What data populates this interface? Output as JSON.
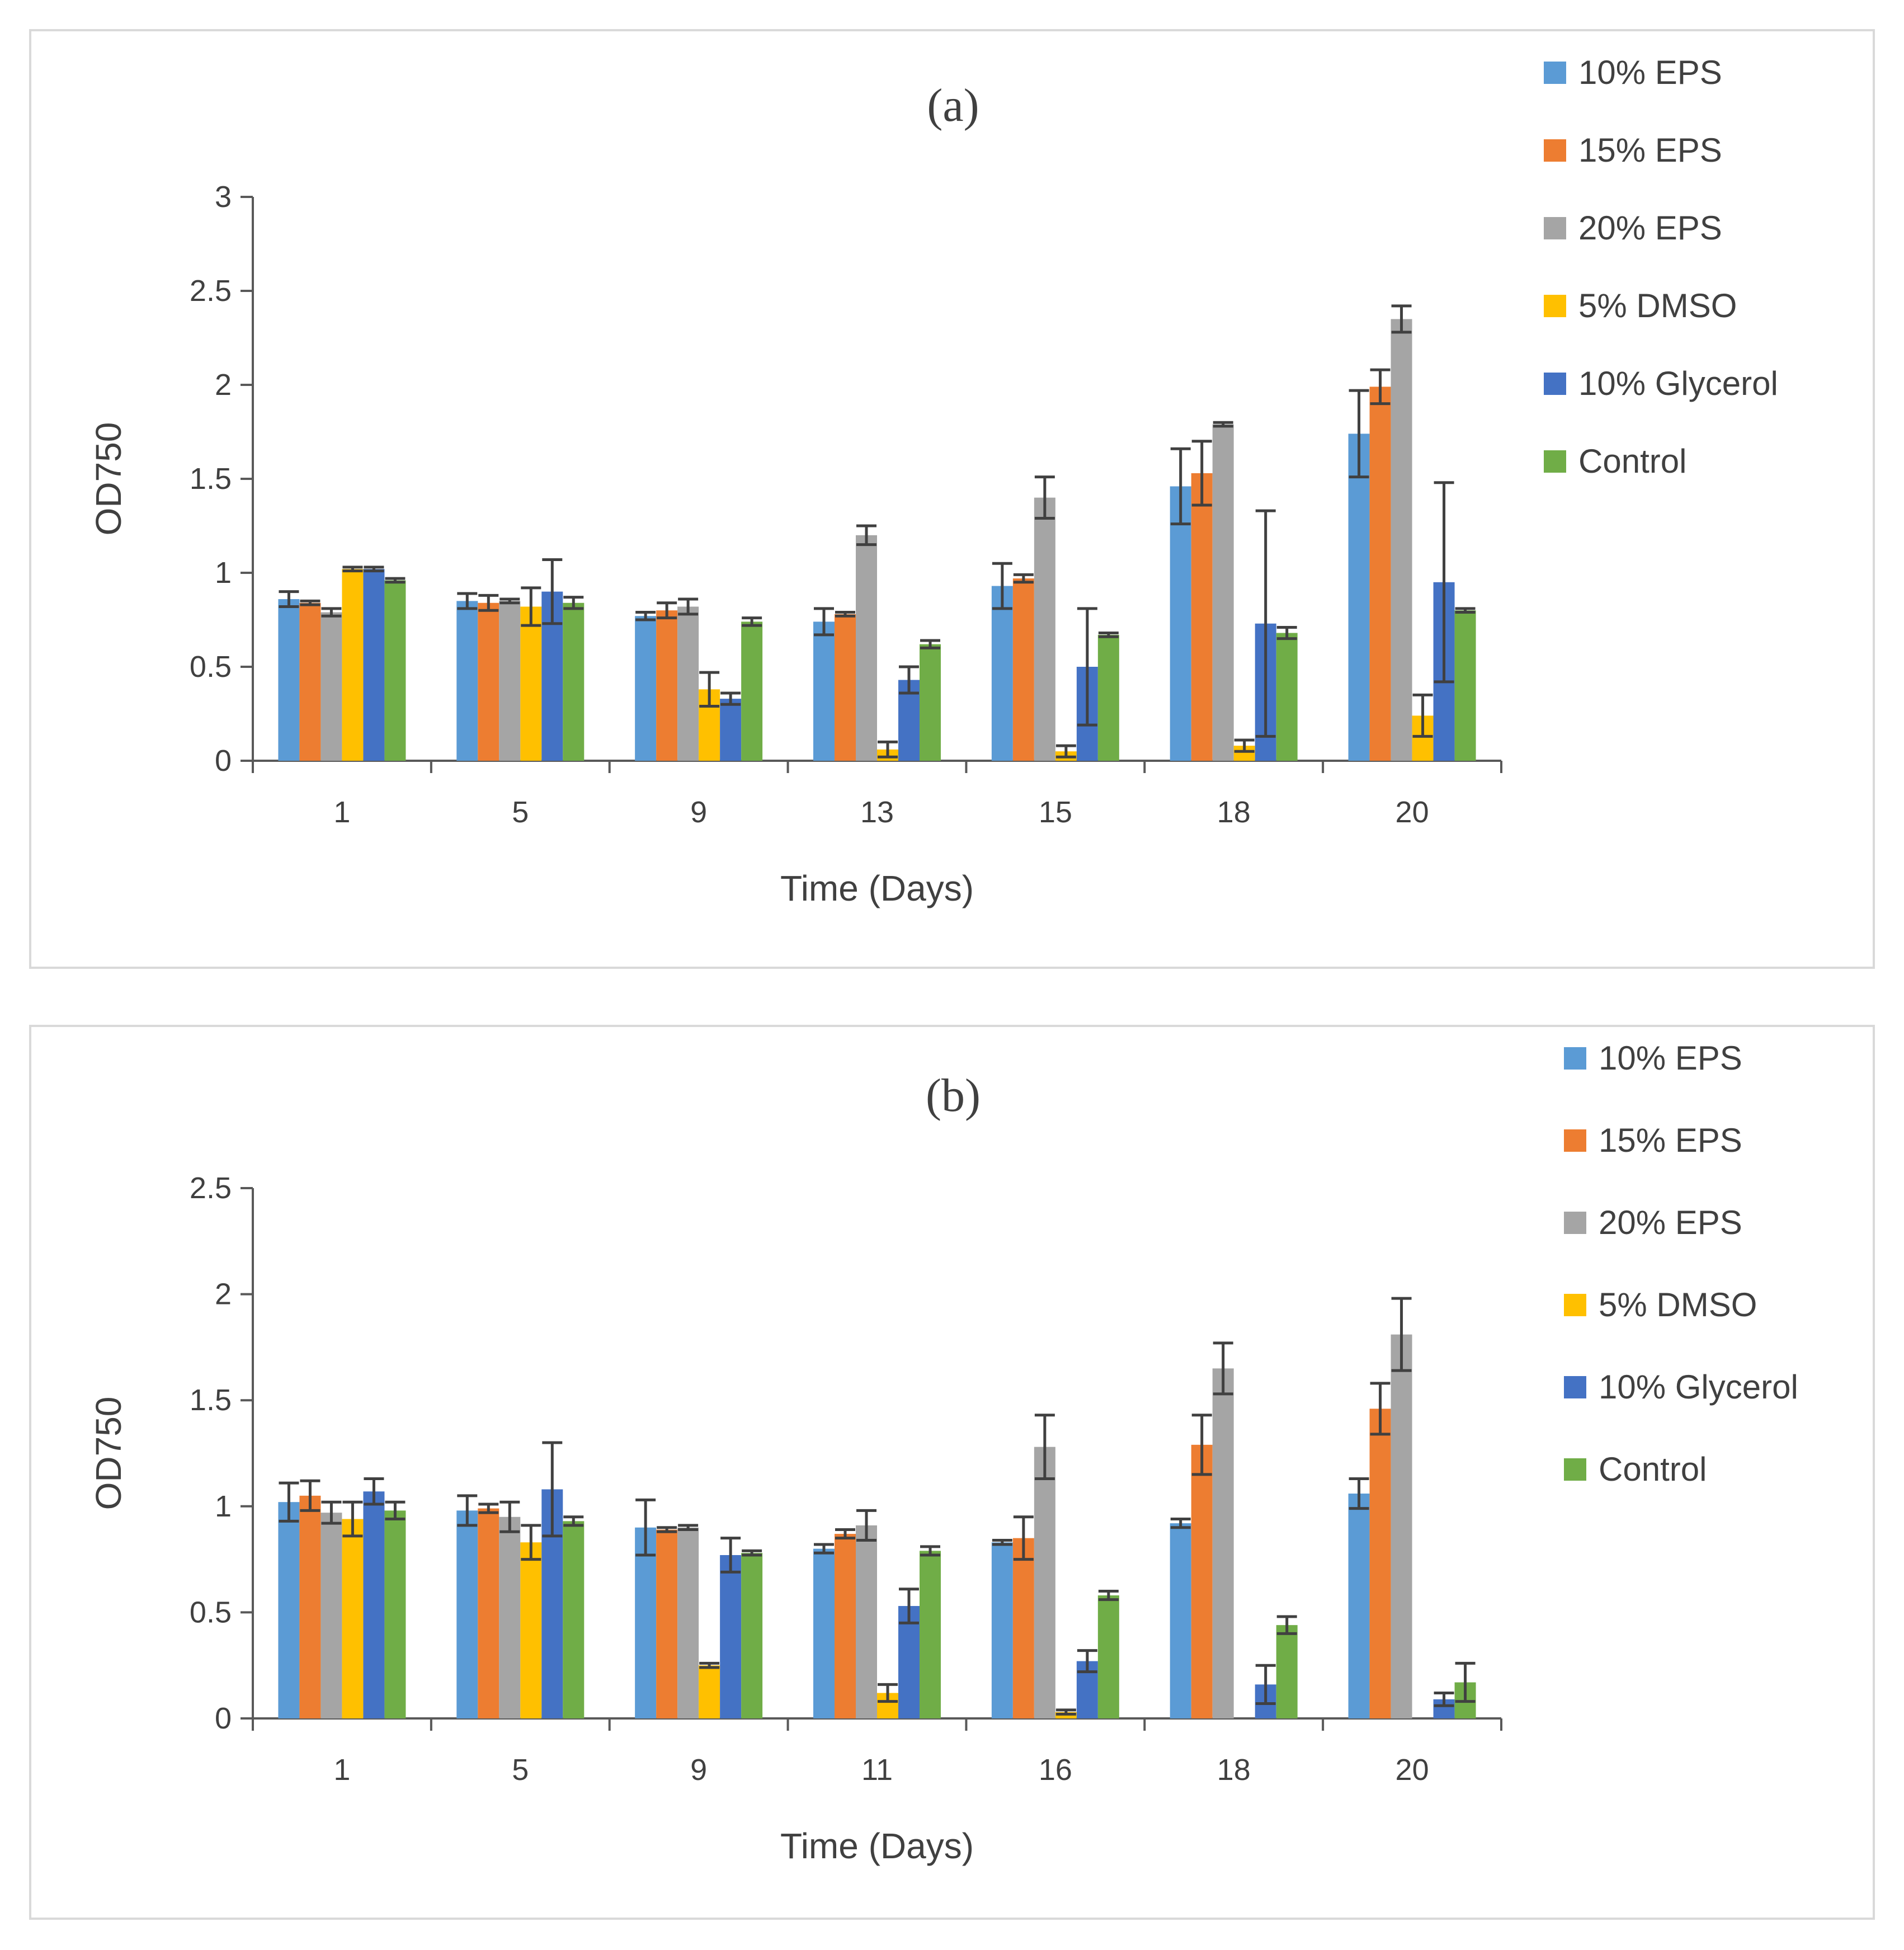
{
  "chart_data": [
    {
      "type": "bar",
      "title": "(a)",
      "xlabel": "Time (Days)",
      "ylabel": "OD750",
      "ylim": [
        0,
        3
      ],
      "yticks": [
        0,
        0.5,
        1,
        1.5,
        2,
        2.5,
        3
      ],
      "ytick_labels": [
        "0",
        "0.5",
        "1",
        "1.5",
        "2",
        "2.5",
        "3"
      ],
      "categories": [
        "1",
        "5",
        "9",
        "13",
        "15",
        "18",
        "20"
      ],
      "legend_position": "top-right",
      "series": [
        {
          "name": "10% EPS",
          "color": "#5b9bd5",
          "values": [
            0.86,
            0.85,
            0.77,
            0.74,
            0.93,
            1.46,
            1.74
          ],
          "errors": [
            0.04,
            0.04,
            0.02,
            0.07,
            0.12,
            0.2,
            0.23
          ]
        },
        {
          "name": "15% EPS",
          "color": "#ed7d31",
          "values": [
            0.84,
            0.84,
            0.8,
            0.78,
            0.97,
            1.53,
            1.99
          ],
          "errors": [
            0.01,
            0.04,
            0.04,
            0.01,
            0.02,
            0.17,
            0.09
          ]
        },
        {
          "name": "20% EPS",
          "color": "#a5a5a5",
          "values": [
            0.79,
            0.85,
            0.82,
            1.2,
            1.4,
            1.79,
            2.35
          ],
          "errors": [
            0.02,
            0.01,
            0.04,
            0.05,
            0.11,
            0.01,
            0.07
          ]
        },
        {
          "name": "5% DMSO",
          "color": "#ffc000",
          "values": [
            1.02,
            0.82,
            0.38,
            0.06,
            0.05,
            0.08,
            0.24
          ],
          "errors": [
            0.01,
            0.1,
            0.09,
            0.04,
            0.03,
            0.03,
            0.11
          ]
        },
        {
          "name": "10% Glycerol",
          "color": "#4472c4",
          "values": [
            1.02,
            0.9,
            0.33,
            0.43,
            0.5,
            0.73,
            0.95
          ],
          "errors": [
            0.01,
            0.17,
            0.03,
            0.07,
            0.31,
            0.6,
            0.53
          ]
        },
        {
          "name": "Control",
          "color": "#70ad47",
          "values": [
            0.96,
            0.84,
            0.74,
            0.62,
            0.67,
            0.68,
            0.8
          ],
          "errors": [
            0.01,
            0.03,
            0.02,
            0.02,
            0.01,
            0.03,
            0.01
          ]
        }
      ]
    },
    {
      "type": "bar",
      "title": "(b)",
      "xlabel": "Time (Days)",
      "ylabel": "OD750",
      "ylim": [
        0,
        2.5
      ],
      "yticks": [
        0,
        0.5,
        1,
        1.5,
        2,
        2.5
      ],
      "ytick_labels": [
        "0",
        "0.5",
        "1",
        "1.5",
        "2",
        "2.5"
      ],
      "categories": [
        "1",
        "5",
        "9",
        "11",
        "16",
        "18",
        "20"
      ],
      "legend_position": "top-right",
      "series": [
        {
          "name": "10% EPS",
          "color": "#5b9bd5",
          "values": [
            1.02,
            0.98,
            0.9,
            0.8,
            0.83,
            0.92,
            1.06
          ],
          "errors": [
            0.09,
            0.07,
            0.13,
            0.02,
            0.01,
            0.02,
            0.07
          ]
        },
        {
          "name": "15% EPS",
          "color": "#ed7d31",
          "values": [
            1.05,
            0.99,
            0.89,
            0.87,
            0.85,
            1.29,
            1.46
          ],
          "errors": [
            0.07,
            0.02,
            0.01,
            0.02,
            0.1,
            0.14,
            0.12
          ]
        },
        {
          "name": "20% EPS",
          "color": "#a5a5a5",
          "values": [
            0.97,
            0.95,
            0.9,
            0.91,
            1.28,
            1.65,
            1.81
          ],
          "errors": [
            0.05,
            0.07,
            0.01,
            0.07,
            0.15,
            0.12,
            0.17
          ]
        },
        {
          "name": "5% DMSO",
          "color": "#ffc000",
          "values": [
            0.94,
            0.83,
            0.25,
            0.12,
            0.03,
            0.0,
            0.0
          ],
          "errors": [
            0.08,
            0.08,
            0.01,
            0.04,
            0.01,
            0.0,
            0.0
          ]
        },
        {
          "name": "10% Glycerol",
          "color": "#4472c4",
          "values": [
            1.07,
            1.08,
            0.77,
            0.53,
            0.27,
            0.16,
            0.09
          ],
          "errors": [
            0.06,
            0.22,
            0.08,
            0.08,
            0.05,
            0.09,
            0.03
          ]
        },
        {
          "name": "Control",
          "color": "#70ad47",
          "values": [
            0.98,
            0.93,
            0.78,
            0.79,
            0.58,
            0.44,
            0.17
          ],
          "errors": [
            0.04,
            0.02,
            0.01,
            0.02,
            0.02,
            0.04,
            0.09
          ]
        }
      ]
    }
  ]
}
